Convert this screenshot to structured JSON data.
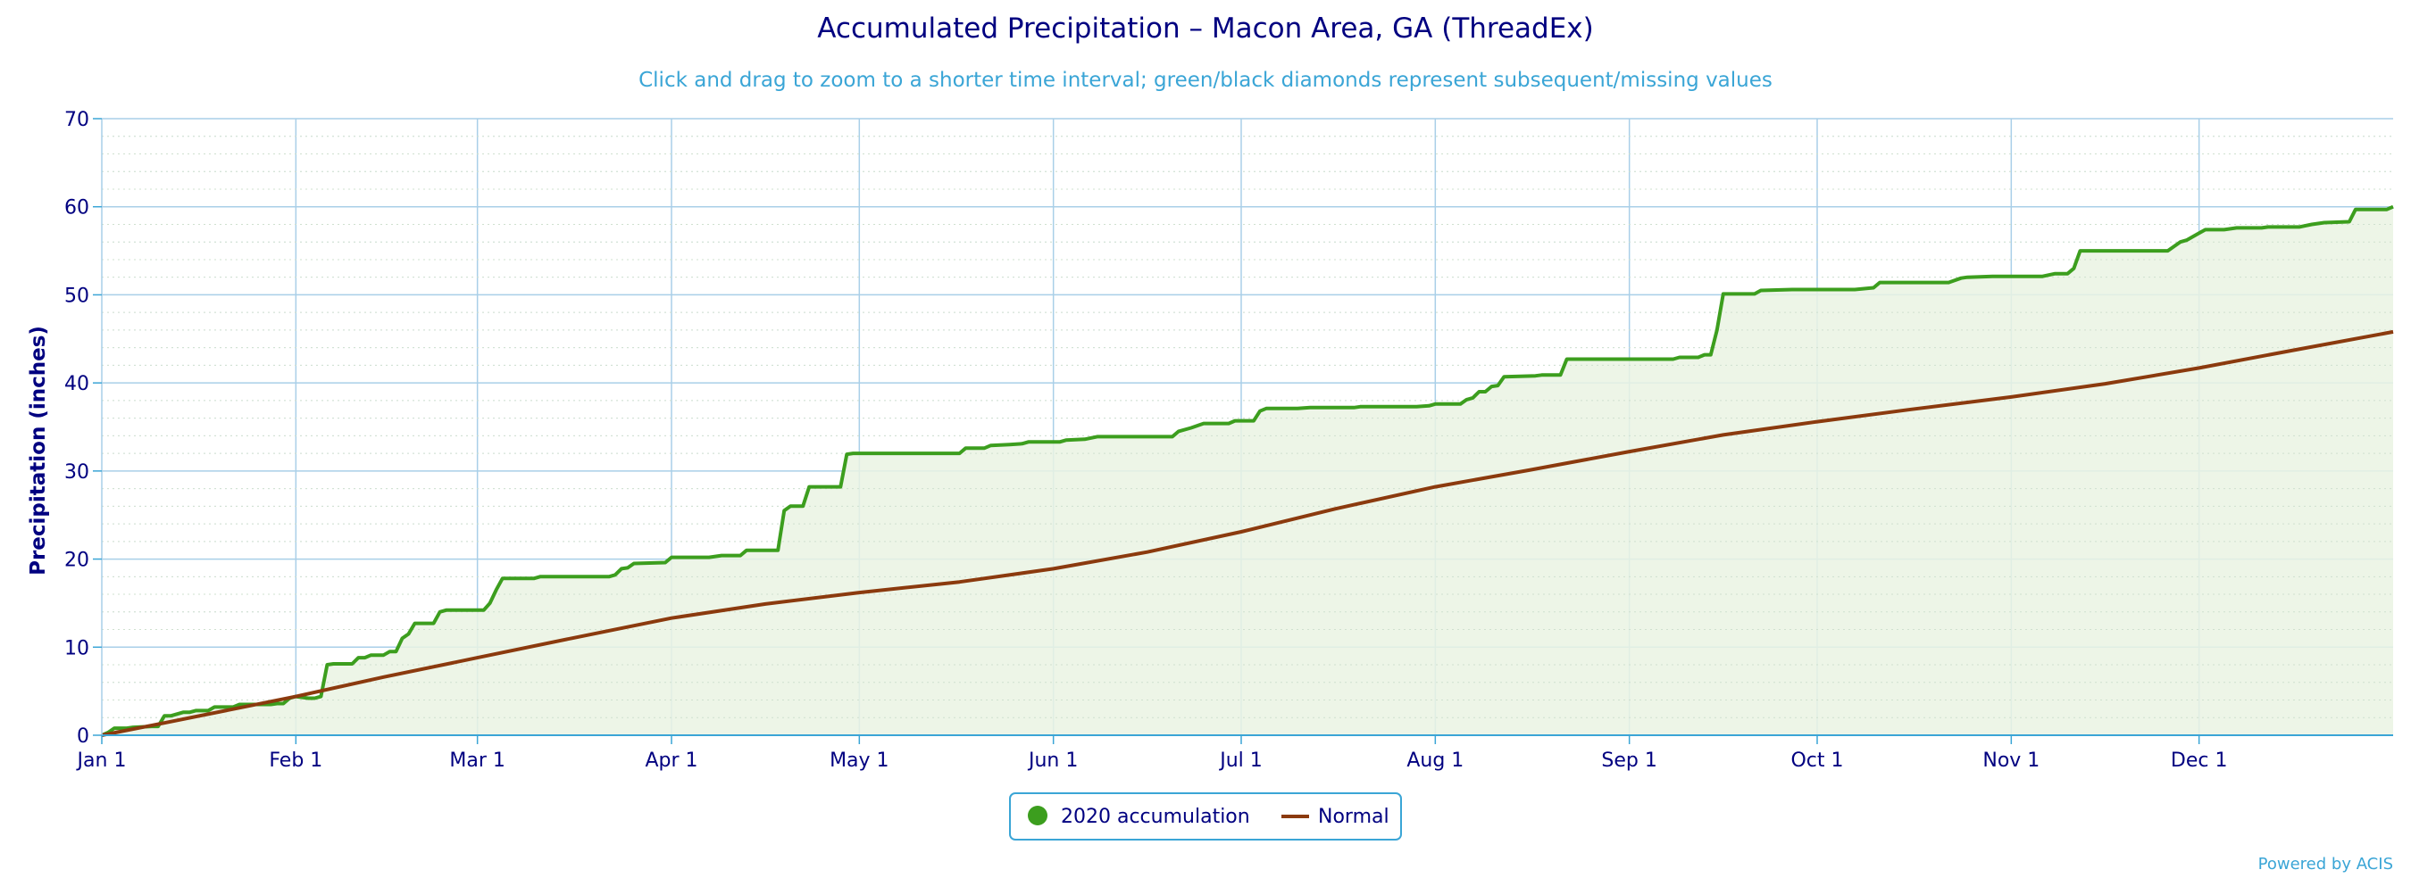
{
  "chart_data": {
    "type": "line",
    "title": "Accumulated Precipitation – Macon Area, GA (ThreadEx)",
    "subtitle": "Click and drag to zoom to a shorter time interval; green/black diamonds represent subsequent/missing values",
    "xlabel": "",
    "ylabel": "Precipitation (inches)",
    "ylim": [
      0,
      70
    ],
    "yticks": [
      0,
      10,
      20,
      30,
      40,
      50,
      60,
      70
    ],
    "xlim": [
      0,
      366
    ],
    "xticks": [
      {
        "day": 0,
        "label": "Jan 1"
      },
      {
        "day": 31,
        "label": "Feb 1"
      },
      {
        "day": 60,
        "label": "Mar 1"
      },
      {
        "day": 91,
        "label": "Apr 1"
      },
      {
        "day": 121,
        "label": "May 1"
      },
      {
        "day": 152,
        "label": "Jun 1"
      },
      {
        "day": 182,
        "label": "Jul 1"
      },
      {
        "day": 213,
        "label": "Aug 1"
      },
      {
        "day": 244,
        "label": "Sep 1"
      },
      {
        "day": 274,
        "label": "Oct 1"
      },
      {
        "day": 305,
        "label": "Nov 1"
      },
      {
        "day": 335,
        "label": "Dec 1"
      }
    ],
    "grid": true,
    "legend_position": "bottom-center",
    "credits": "Powered by ACIS",
    "series": [
      {
        "name": "2020 accumulation",
        "color": "#3c9e1e",
        "fill": "#eaf3e3",
        "points": [
          [
            0,
            0
          ],
          [
            1,
            0.3
          ],
          [
            2,
            0.8
          ],
          [
            4,
            0.8
          ],
          [
            5,
            0.9
          ],
          [
            8,
            1.0
          ],
          [
            9,
            1.0
          ],
          [
            10,
            2.2
          ],
          [
            11,
            2.2
          ],
          [
            12,
            2.4
          ],
          [
            13,
            2.6
          ],
          [
            14,
            2.6
          ],
          [
            15,
            2.8
          ],
          [
            16,
            2.8
          ],
          [
            17,
            2.8
          ],
          [
            18,
            3.2
          ],
          [
            19,
            3.2
          ],
          [
            21,
            3.2
          ],
          [
            22,
            3.5
          ],
          [
            25,
            3.5
          ],
          [
            27,
            3.5
          ],
          [
            28,
            3.6
          ],
          [
            29,
            3.6
          ],
          [
            30,
            4.2
          ],
          [
            31,
            4.4
          ],
          [
            33,
            4.2
          ],
          [
            34,
            4.2
          ],
          [
            35,
            4.4
          ],
          [
            36,
            8.0
          ],
          [
            37,
            8.1
          ],
          [
            40,
            8.1
          ],
          [
            41,
            8.8
          ],
          [
            42,
            8.8
          ],
          [
            43,
            9.1
          ],
          [
            45,
            9.1
          ],
          [
            46,
            9.5
          ],
          [
            47,
            9.5
          ],
          [
            48,
            11.0
          ],
          [
            49,
            11.5
          ],
          [
            50,
            12.7
          ],
          [
            53,
            12.7
          ],
          [
            54,
            14.0
          ],
          [
            55,
            14.2
          ],
          [
            61,
            14.2
          ],
          [
            62,
            15.0
          ],
          [
            63,
            16.5
          ],
          [
            64,
            17.8
          ],
          [
            69,
            17.8
          ],
          [
            70,
            18.0
          ],
          [
            81,
            18.0
          ],
          [
            82,
            18.2
          ],
          [
            83,
            18.9
          ],
          [
            84,
            19.0
          ],
          [
            85,
            19.5
          ],
          [
            90,
            19.6
          ],
          [
            91,
            20.2
          ],
          [
            97,
            20.2
          ],
          [
            98,
            20.3
          ],
          [
            99,
            20.4
          ],
          [
            102,
            20.4
          ],
          [
            103,
            21.0
          ],
          [
            108,
            21.0
          ],
          [
            109,
            25.5
          ],
          [
            110,
            26.0
          ],
          [
            112,
            26.0
          ],
          [
            113,
            28.2
          ],
          [
            118,
            28.2
          ],
          [
            119,
            31.9
          ],
          [
            120,
            32.0
          ],
          [
            137,
            32.0
          ],
          [
            138,
            32.6
          ],
          [
            141,
            32.6
          ],
          [
            142,
            32.9
          ],
          [
            145,
            33.0
          ],
          [
            147,
            33.1
          ],
          [
            148,
            33.3
          ],
          [
            153,
            33.3
          ],
          [
            154,
            33.5
          ],
          [
            157,
            33.6
          ],
          [
            159,
            33.9
          ],
          [
            171,
            33.9
          ],
          [
            172,
            34.5
          ],
          [
            174,
            34.9
          ],
          [
            176,
            35.4
          ],
          [
            180,
            35.4
          ],
          [
            181,
            35.7
          ],
          [
            184,
            35.7
          ],
          [
            185,
            36.8
          ],
          [
            186,
            37.1
          ],
          [
            191,
            37.1
          ],
          [
            193,
            37.2
          ],
          [
            200,
            37.2
          ],
          [
            201,
            37.3
          ],
          [
            210,
            37.3
          ],
          [
            212,
            37.4
          ],
          [
            213,
            37.6
          ],
          [
            217,
            37.6
          ],
          [
            218,
            38.1
          ],
          [
            219,
            38.3
          ],
          [
            220,
            39.0
          ],
          [
            221,
            39.0
          ],
          [
            222,
            39.6
          ],
          [
            223,
            39.7
          ],
          [
            224,
            40.7
          ],
          [
            229,
            40.8
          ],
          [
            230,
            40.9
          ],
          [
            233,
            40.9
          ],
          [
            234,
            42.7
          ],
          [
            246,
            42.7
          ],
          [
            251,
            42.7
          ],
          [
            252,
            42.9
          ],
          [
            255,
            42.9
          ],
          [
            256,
            43.2
          ],
          [
            257,
            43.2
          ],
          [
            258,
            46.0
          ],
          [
            259,
            50.1
          ],
          [
            264,
            50.1
          ],
          [
            265,
            50.5
          ],
          [
            270,
            50.6
          ],
          [
            280,
            50.6
          ],
          [
            283,
            50.8
          ],
          [
            284,
            51.4
          ],
          [
            295,
            51.4
          ],
          [
            297,
            51.9
          ],
          [
            298,
            52.0
          ],
          [
            302,
            52.1
          ],
          [
            310,
            52.1
          ],
          [
            312,
            52.4
          ],
          [
            314,
            52.4
          ],
          [
            315,
            53.0
          ],
          [
            316,
            55.0
          ],
          [
            330,
            55.0
          ],
          [
            332,
            56.0
          ],
          [
            333,
            56.2
          ],
          [
            335,
            57.0
          ],
          [
            336,
            57.4
          ],
          [
            339,
            57.4
          ],
          [
            341,
            57.6
          ],
          [
            345,
            57.6
          ],
          [
            346,
            57.7
          ],
          [
            351,
            57.7
          ],
          [
            353,
            58.0
          ],
          [
            355,
            58.2
          ],
          [
            359,
            58.3
          ],
          [
            360,
            59.7
          ],
          [
            365,
            59.7
          ],
          [
            366,
            60.0
          ]
        ]
      },
      {
        "name": "Normal",
        "color": "#8b3a0e",
        "points": [
          [
            0,
            0
          ],
          [
            10,
            1.4
          ],
          [
            31,
            4.4
          ],
          [
            45,
            6.6
          ],
          [
            60,
            8.8
          ],
          [
            75,
            11.0
          ],
          [
            91,
            13.3
          ],
          [
            106,
            14.9
          ],
          [
            121,
            16.2
          ],
          [
            137,
            17.4
          ],
          [
            152,
            18.9
          ],
          [
            167,
            20.8
          ],
          [
            182,
            23.1
          ],
          [
            197,
            25.7
          ],
          [
            213,
            28.2
          ],
          [
            228,
            30.1
          ],
          [
            244,
            32.2
          ],
          [
            259,
            34.1
          ],
          [
            274,
            35.6
          ],
          [
            289,
            37.0
          ],
          [
            305,
            38.4
          ],
          [
            320,
            39.9
          ],
          [
            335,
            41.7
          ],
          [
            350,
            43.7
          ],
          [
            366,
            45.8
          ]
        ]
      }
    ]
  }
}
